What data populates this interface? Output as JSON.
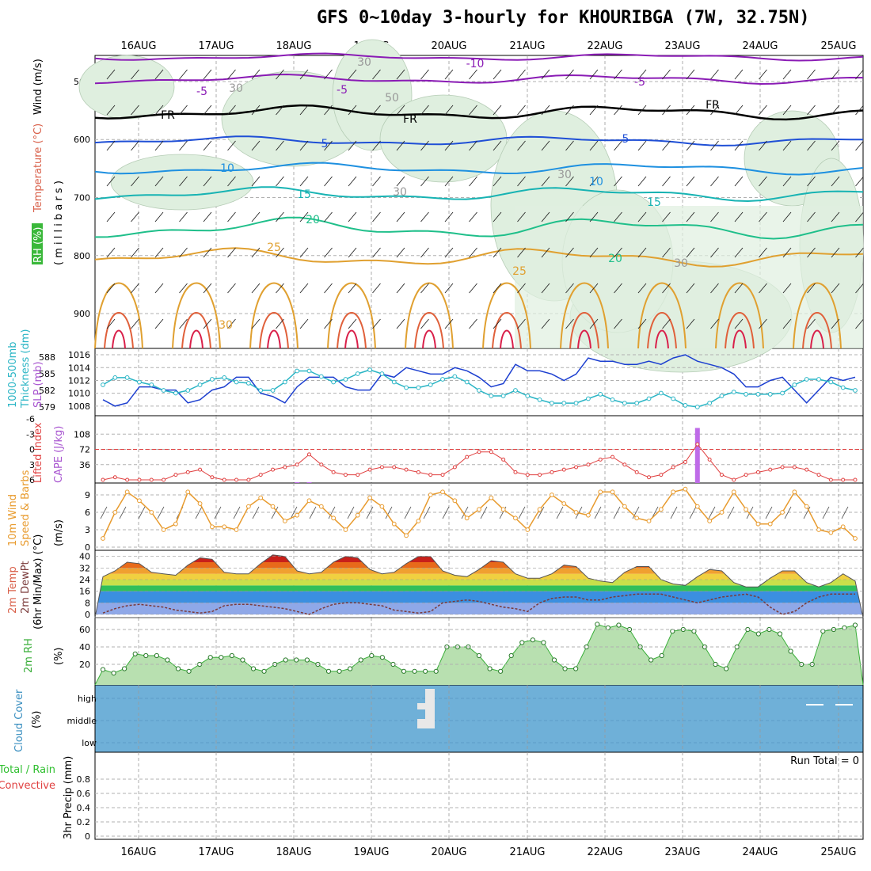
{
  "title": "GFS 0~10day 3-hourly for KHOURIBGA (7W, 32.75N)",
  "colors": {
    "temp_cold": "#8a1bb5",
    "freezing": "#000000",
    "temp_5": "#1f4fd6",
    "temp_10": "#1e90e0",
    "temp_15": "#17b3b3",
    "temp_20": "#1fbf8a",
    "temp_25": "#e0a030",
    "rh_fill": "#dfefdf",
    "slp": "#1c3fd0",
    "thickness": "#2ab5c5",
    "cape": "#bf6be8",
    "lifted_index": "#e04040",
    "wind_speed": "#e89b2e",
    "dewpoint": "#7a3a3a",
    "rh2m": "#3aae3a",
    "cloud": "#6fb0d8"
  },
  "chart_data": [
    {
      "type": "line",
      "panel": "upper-air",
      "labels": {
        "l1": "RH (%)",
        "l2": "Temperature (°C)",
        "l3": "Wind (m/s)",
        "l4": "( m i l l i b a r s )"
      },
      "yticks": [
        "500",
        "600",
        "700",
        "800",
        "900"
      ],
      "contour_labels": [
        "-10",
        "-5",
        "-5",
        "-5",
        "FR",
        "FR",
        "FR",
        "5",
        "5",
        "10",
        "10",
        "15",
        "15",
        "20",
        "20",
        "25",
        "25",
        "30",
        "30",
        "30",
        "50",
        "30",
        "30",
        "30"
      ],
      "x_dates": [
        "16AUG",
        "17AUG",
        "18AUG",
        "19AUG",
        "20AUG",
        "21AUG",
        "22AUG",
        "23AUG",
        "24AUG",
        "25AUG"
      ]
    },
    {
      "type": "line",
      "panel": "slp-thickness",
      "labels": {
        "l1": "1000-500mb",
        "l2": "Thickness (dm)",
        "l3": "SLP (mb)"
      },
      "yticks_left": [
        "588",
        "585",
        "582",
        "579"
      ],
      "yticks_right": [
        "1016",
        "1014",
        "1012",
        "1010",
        "1008"
      ],
      "series": [
        {
          "name": "SLP",
          "values": [
            1009,
            1008,
            1008.5,
            1011,
            1011,
            1010.5,
            1010.5,
            1008.5,
            1009,
            1010.5,
            1011,
            1012.5,
            1012.5,
            1010,
            1009.5,
            1008.5,
            1011,
            1012.5,
            1012.5,
            1012.5,
            1011,
            1010.5,
            1010.5,
            1013,
            1012.5,
            1014,
            1013.5,
            1013,
            1013,
            1014,
            1013.5,
            1012.5,
            1011,
            1011.5,
            1014.5,
            1013.5,
            1013.5,
            1013,
            1012,
            1013,
            1015.5,
            1015,
            1015,
            1014.5,
            1014.5,
            1015,
            1014.5,
            1015.5,
            1016,
            1015,
            1014.5,
            1014,
            1013,
            1011,
            1011,
            1012,
            1012.5,
            1010.5,
            1008.5,
            1010.5,
            1012.5,
            1012,
            1012.5
          ]
        },
        {
          "name": "Thickness",
          "values": [
            583,
            584.3,
            584.3,
            583.5,
            583,
            582,
            581.5,
            582,
            583,
            584,
            584.3,
            583.5,
            583.3,
            582,
            582,
            583.5,
            585.5,
            585.5,
            584.5,
            583.5,
            584,
            585,
            585.7,
            585,
            583.5,
            582.5,
            582.5,
            583,
            584,
            584.5,
            583.5,
            582,
            581,
            581,
            582,
            581,
            580.3,
            579.7,
            579.7,
            579.7,
            580.5,
            581.3,
            580.3,
            579.7,
            579.7,
            580.5,
            581.5,
            580.5,
            579.3,
            579,
            579.7,
            581,
            581.7,
            581.3,
            581.3,
            581.3,
            581.5,
            583,
            584,
            584,
            583.5,
            582.5,
            582
          ]
        }
      ]
    },
    {
      "type": "line",
      "panel": "stability",
      "labels": {
        "l1": "Lifted Index",
        "l2": "CAPE (J/kg)"
      },
      "yticks_left": [
        "-6",
        "-3",
        "0",
        "3",
        "6"
      ],
      "yticks_right": [
        "108",
        "72",
        "36"
      ],
      "series": [
        {
          "name": "Lifted Index",
          "values": [
            6,
            5.5,
            6,
            6,
            6,
            6,
            5,
            4.5,
            4,
            5.5,
            6,
            6,
            6,
            5,
            4,
            3.5,
            3,
            1,
            3,
            4.5,
            5,
            5,
            4,
            3.5,
            3.5,
            4,
            4.5,
            5,
            5,
            3.5,
            1.5,
            0.5,
            0.5,
            2,
            4.5,
            5,
            5,
            4.5,
            4,
            3.5,
            3,
            2,
            1.5,
            3,
            4.5,
            5.5,
            5,
            3.5,
            2.5,
            -1,
            2,
            5,
            6,
            5,
            4.5,
            4,
            3.5,
            3.5,
            4,
            5,
            6,
            6,
            6
          ]
        },
        {
          "name": "CAPE",
          "values": [
            0,
            0,
            0,
            0,
            0,
            0,
            0,
            0,
            0,
            0,
            0,
            0,
            0,
            0,
            0,
            0,
            2,
            2,
            0,
            0,
            0,
            0,
            0,
            0,
            0,
            0,
            0,
            0,
            0,
            0,
            0,
            0,
            0,
            0,
            0,
            0,
            0,
            0,
            0,
            0,
            0,
            0,
            0,
            0,
            0,
            0,
            0,
            0,
            0,
            130,
            0,
            0,
            0,
            0,
            0,
            0,
            0,
            0,
            0,
            0,
            0,
            0,
            0
          ]
        }
      ]
    },
    {
      "type": "line",
      "panel": "wind10m",
      "labels": {
        "l1": "10m Wind",
        "l2": "Speed & Barbs",
        "l3": "(m/s)"
      },
      "yticks": [
        "9",
        "6",
        "3",
        "0"
      ],
      "series": [
        {
          "name": "Wind speed",
          "values": [
            1.5,
            6,
            9.5,
            8,
            6,
            3,
            4,
            9.5,
            7.5,
            3.5,
            3.5,
            3,
            7,
            8.5,
            7,
            4.5,
            5.5,
            8,
            7,
            5,
            3,
            5.5,
            8.5,
            7,
            4,
            2,
            4.5,
            9,
            9.5,
            8,
            5,
            6.5,
            8.5,
            6.5,
            5,
            3,
            6.5,
            9,
            7.5,
            6,
            5.5,
            9.5,
            9.5,
            7,
            5,
            4.5,
            6.5,
            9.5,
            10,
            7,
            4.5,
            6,
            9.5,
            6.5,
            4,
            4,
            6,
            9.5,
            7,
            3,
            2.5,
            3.5,
            1.5
          ]
        }
      ]
    },
    {
      "type": "area",
      "panel": "temperature2m",
      "labels": {
        "l1": "2m Temp",
        "l2": "2m DewPt",
        "l3": "(6hr Min/Max) (°C)"
      },
      "yticks": [
        "40",
        "32",
        "24",
        "16",
        "8",
        "0"
      ],
      "series": [
        {
          "name": "Temperature",
          "values": [
            26,
            30,
            36,
            35,
            29,
            28,
            27,
            34,
            39,
            38,
            29,
            28,
            28,
            35,
            41,
            40,
            30,
            28,
            29,
            36,
            40,
            39,
            31,
            28,
            29,
            35,
            40,
            40,
            30,
            27,
            26,
            31,
            37,
            36,
            28,
            25,
            25,
            28,
            34,
            33,
            25,
            23,
            22,
            29,
            33,
            33,
            24,
            21,
            20,
            26,
            31,
            30,
            22,
            19,
            19,
            25,
            30,
            30,
            22,
            19,
            22,
            28,
            23
          ]
        },
        {
          "name": "Dew point",
          "values": [
            1,
            4,
            6,
            7,
            6,
            5,
            3,
            2,
            1,
            2,
            6,
            7,
            7,
            6,
            5,
            4,
            2,
            0,
            4,
            7,
            8,
            8,
            7,
            6,
            3,
            2,
            1,
            2,
            8,
            9,
            10,
            9,
            7,
            5,
            4,
            2,
            8,
            11,
            12,
            12,
            10,
            10,
            12,
            13,
            14,
            14,
            14,
            12,
            10,
            8,
            10,
            12,
            13,
            14,
            12,
            5,
            0,
            2,
            8,
            12,
            14,
            14,
            14
          ]
        }
      ]
    },
    {
      "type": "area",
      "panel": "rh2m",
      "labels": {
        "l1": "2m RH",
        "l2": "(%)"
      },
      "yticks": [
        "60",
        "40",
        "20"
      ],
      "series": [
        {
          "name": "2m RH",
          "values": [
            14,
            10,
            15,
            32,
            30,
            30,
            25,
            15,
            12,
            20,
            28,
            28,
            30,
            25,
            15,
            12,
            20,
            25,
            25,
            25,
            20,
            12,
            12,
            15,
            25,
            30,
            28,
            20,
            12,
            12,
            12,
            12,
            40,
            40,
            40,
            30,
            15,
            12,
            30,
            45,
            48,
            45,
            25,
            15,
            15,
            40,
            66,
            62,
            65,
            60,
            40,
            25,
            30,
            58,
            60,
            58,
            40,
            20,
            15,
            40,
            60,
            55,
            60,
            55,
            35,
            20,
            20,
            58,
            60,
            62,
            65
          ]
        }
      ]
    },
    {
      "type": "heatmap",
      "panel": "cloud-cover",
      "labels": {
        "l1": "Cloud Cover",
        "l2": "(%)"
      },
      "levels": [
        "high",
        "middle",
        "low"
      ]
    },
    {
      "type": "bar",
      "panel": "precipitation",
      "labels": {
        "l1": "Total / Rain",
        "l2": "Convective",
        "l3": "3hr Precip (mm)"
      },
      "run_total": "Run Total = 0",
      "yticks": [
        "0.8",
        "0.6",
        "0.4",
        "0.2",
        "0"
      ],
      "ylim": [
        0,
        1
      ],
      "values": []
    }
  ]
}
